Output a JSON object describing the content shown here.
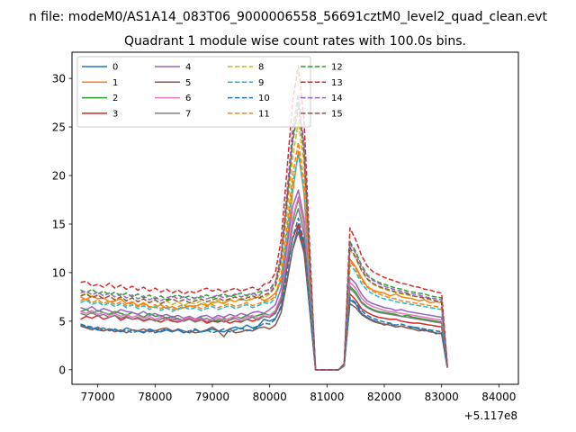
{
  "chart_data": {
    "type": "line",
    "suptitle": "n file: modeM0/AS1A14_083T06_9000006558_56691cztM0_level2_quad_clean.evt",
    "title": "Quadrant 1 module wise count rates with 100.0s bins.",
    "xlabel": "",
    "ylabel": "",
    "x_offset_label": "+5.117e8",
    "xlim": [
      76550,
      84340
    ],
    "ylim": [
      -1.5,
      32.7
    ],
    "xticks": [
      77000,
      78000,
      79000,
      80000,
      81000,
      82000,
      83000,
      84000
    ],
    "xtick_labels": [
      "77000",
      "78000",
      "79000",
      "80000",
      "81000",
      "82000",
      "83000",
      "84000"
    ],
    "yticks": [
      0,
      5,
      10,
      15,
      20,
      25,
      30
    ],
    "ytick_labels": [
      "0",
      "5",
      "10",
      "15",
      "20",
      "25",
      "30"
    ],
    "grid": false,
    "legend_position": "top-left",
    "x_start": 76700,
    "x_step": 100,
    "series": [
      {
        "name": "0",
        "color": "#1f77b4",
        "dash": "solid",
        "values": [
          4.6,
          4.4,
          4.3,
          4.1,
          4.0,
          4.2,
          4.1,
          3.9,
          4.3,
          4.1,
          4.0,
          3.8,
          4.2,
          4.0,
          3.9,
          4.1,
          3.9,
          4.2,
          4.0,
          3.8,
          4.1,
          3.9,
          4.0,
          4.2,
          4.0,
          3.9,
          4.2,
          4.4,
          4.2,
          4.6,
          4.3,
          4.5,
          5.2,
          5.0,
          5.3,
          6.4,
          9.2,
          12.5,
          14.7,
          12.4,
          6.0,
          0,
          0,
          0,
          0,
          0,
          0.4,
          7.2,
          6.8,
          5.8,
          5.4,
          5.1,
          4.9,
          4.6,
          4.8,
          4.4,
          4.5,
          4.3,
          4.4,
          4.2,
          4.0,
          4.1,
          3.7,
          3.8,
          0.2
        ]
      },
      {
        "name": "1",
        "color": "#ff7f0e",
        "dash": "solid",
        "values": [
          7.5,
          7.2,
          7.6,
          7.3,
          7.4,
          7.0,
          7.1,
          7.3,
          6.8,
          7.0,
          6.6,
          6.9,
          6.5,
          6.4,
          6.7,
          6.3,
          6.5,
          6.2,
          6.4,
          6.6,
          6.5,
          6.8,
          6.6,
          6.9,
          7.0,
          6.8,
          7.2,
          7.0,
          7.3,
          7.1,
          7.3,
          7.5,
          7.1,
          7.4,
          7.9,
          9.1,
          13.0,
          18.2,
          22.5,
          18.1,
          9.0,
          0,
          0,
          0,
          0,
          0,
          0.5,
          11.4,
          10.6,
          9.5,
          8.6,
          8.2,
          8.0,
          7.9,
          7.6,
          7.8,
          7.5,
          7.4,
          7.3,
          7.1,
          7.2,
          6.9,
          7.0,
          6.9,
          0.4
        ]
      },
      {
        "name": "2",
        "color": "#2ca02c",
        "dash": "solid",
        "values": [
          6.0,
          6.2,
          5.8,
          6.1,
          5.9,
          5.7,
          6.0,
          5.8,
          5.6,
          5.9,
          5.7,
          5.4,
          5.8,
          5.5,
          5.6,
          5.3,
          5.5,
          5.2,
          5.0,
          5.3,
          5.1,
          5.4,
          4.9,
          5.2,
          5.0,
          5.3,
          5.1,
          5.5,
          5.3,
          5.6,
          5.4,
          5.6,
          5.8,
          5.6,
          6.0,
          7.4,
          11.2,
          15.3,
          17.6,
          14.8,
          7.2,
          0,
          0,
          0,
          0,
          0,
          0.4,
          8.6,
          8.0,
          7.0,
          6.5,
          6.2,
          6.0,
          5.9,
          5.8,
          5.7,
          5.5,
          5.6,
          5.4,
          5.3,
          5.2,
          5.1,
          5.0,
          4.9,
          0.3
        ]
      },
      {
        "name": "3",
        "color": "#d62728",
        "dash": "solid",
        "values": [
          5.2,
          5.5,
          5.3,
          5.6,
          5.2,
          5.4,
          5.6,
          5.1,
          5.4,
          5.2,
          5.3,
          5.0,
          5.2,
          5.1,
          4.9,
          5.2,
          5.0,
          4.9,
          5.1,
          5.3,
          5.0,
          5.2,
          4.8,
          5.0,
          4.9,
          5.1,
          4.8,
          5.0,
          4.9,
          5.2,
          5.0,
          5.2,
          5.5,
          5.4,
          5.8,
          7.1,
          10.5,
          13.5,
          15.0,
          13.0,
          7.0,
          0,
          0,
          0,
          0,
          0,
          0.5,
          7.8,
          7.2,
          6.3,
          5.9,
          5.6,
          5.4,
          5.3,
          5.2,
          5.2,
          5.0,
          4.9,
          4.8,
          4.8,
          4.7,
          4.6,
          4.5,
          4.4,
          0.3
        ]
      },
      {
        "name": "4",
        "color": "#9467bd",
        "dash": "solid",
        "values": [
          6.4,
          6.2,
          6.5,
          6.0,
          6.3,
          6.1,
          5.8,
          6.2,
          6.0,
          5.9,
          5.7,
          6.0,
          5.6,
          5.8,
          5.5,
          5.7,
          5.4,
          5.6,
          5.3,
          5.5,
          5.2,
          5.5,
          5.6,
          5.3,
          5.6,
          5.4,
          5.7,
          5.5,
          5.8,
          5.6,
          5.9,
          6.0,
          5.8,
          6.2,
          6.7,
          8.4,
          12.6,
          16.8,
          18.5,
          15.5,
          7.8,
          0,
          0,
          0,
          0,
          0,
          0.5,
          9.5,
          8.9,
          7.8,
          7.1,
          6.8,
          6.6,
          6.4,
          6.3,
          6.1,
          6.2,
          6.0,
          5.9,
          5.8,
          5.7,
          5.6,
          5.5,
          5.4,
          0.4
        ]
      },
      {
        "name": "5",
        "color": "#8c564b",
        "dash": "solid",
        "values": [
          4.5,
          4.3,
          4.1,
          4.4,
          4.0,
          4.2,
          3.9,
          4.1,
          3.8,
          4.1,
          4.0,
          4.2,
          3.9,
          4.0,
          4.2,
          4.3,
          4.0,
          4.1,
          3.8,
          4.0,
          3.8,
          3.9,
          4.1,
          4.4,
          4.0,
          3.4,
          4.2,
          3.8,
          3.9,
          4.1,
          4.0,
          4.3,
          4.4,
          4.2,
          4.6,
          5.9,
          9.0,
          12.4,
          14.2,
          12.0,
          6.2,
          0,
          0,
          0,
          0,
          0,
          0.4,
          6.8,
          6.4,
          5.7,
          5.3,
          5.0,
          4.8,
          4.7,
          4.6,
          4.4,
          4.5,
          4.3,
          4.2,
          4.0,
          4.1,
          3.9,
          3.8,
          3.7,
          0.2
        ]
      },
      {
        "name": "6",
        "color": "#e377c2",
        "dash": "solid",
        "values": [
          6.0,
          5.8,
          6.1,
          5.7,
          5.9,
          5.6,
          5.8,
          5.5,
          5.7,
          5.4,
          5.6,
          5.3,
          5.5,
          5.2,
          5.4,
          5.1,
          5.3,
          5.0,
          5.2,
          5.4,
          5.1,
          5.3,
          5.0,
          5.2,
          5.4,
          5.1,
          5.3,
          5.5,
          5.2,
          5.4,
          5.6,
          5.3,
          5.7,
          5.6,
          6.1,
          7.6,
          11.5,
          15.6,
          17.8,
          14.9,
          7.4,
          0,
          0,
          0,
          0,
          0,
          0.5,
          9.0,
          8.4,
          7.4,
          6.8,
          6.5,
          6.3,
          6.1,
          6.0,
          5.9,
          5.8,
          5.7,
          5.6,
          5.5,
          5.4,
          5.3,
          5.2,
          5.1,
          0.3
        ]
      },
      {
        "name": "7",
        "color": "#7f7f7f",
        "dash": "solid",
        "values": [
          5.8,
          5.6,
          5.9,
          5.5,
          5.7,
          5.4,
          5.6,
          5.3,
          5.5,
          5.2,
          5.4,
          5.1,
          5.3,
          5.0,
          5.2,
          5.4,
          5.1,
          5.3,
          5.0,
          5.2,
          4.9,
          5.1,
          5.3,
          5.0,
          5.2,
          4.9,
          5.1,
          5.3,
          5.0,
          5.2,
          5.4,
          5.1,
          5.5,
          5.4,
          5.9,
          7.3,
          11.0,
          14.8,
          16.6,
          14.0,
          7.1,
          0,
          0,
          0,
          0,
          0,
          0.5,
          8.4,
          7.8,
          6.9,
          6.4,
          6.1,
          5.9,
          5.8,
          5.7,
          5.6,
          5.5,
          5.4,
          5.3,
          5.2,
          5.1,
          5.0,
          4.9,
          4.8,
          0.3
        ]
      },
      {
        "name": "8",
        "color": "#bcbd22",
        "dash": "dashed",
        "values": [
          7.6,
          7.9,
          7.4,
          7.7,
          7.3,
          7.6,
          7.2,
          7.5,
          7.1,
          7.4,
          7.0,
          7.3,
          6.9,
          7.2,
          6.8,
          7.1,
          6.7,
          7.0,
          6.6,
          6.9,
          6.8,
          7.1,
          6.7,
          7.0,
          7.2,
          6.9,
          7.3,
          7.0,
          7.4,
          7.1,
          7.5,
          7.7,
          7.4,
          7.8,
          8.5,
          10.8,
          16.0,
          21.8,
          25.6,
          21.0,
          10.4,
          0,
          0,
          0,
          0,
          0,
          0.6,
          12.4,
          11.5,
          10.2,
          9.3,
          8.8,
          8.5,
          8.3,
          8.1,
          8.0,
          7.8,
          7.7,
          7.6,
          7.5,
          7.3,
          7.2,
          7.1,
          7.0,
          0.4
        ]
      },
      {
        "name": "9",
        "color": "#17becf",
        "dash": "dashed",
        "values": [
          6.9,
          7.2,
          6.7,
          7.0,
          6.6,
          6.9,
          6.5,
          6.8,
          6.4,
          6.7,
          6.3,
          6.6,
          6.2,
          6.5,
          6.1,
          6.4,
          6.0,
          6.3,
          6.5,
          6.2,
          6.4,
          6.1,
          6.3,
          6.5,
          6.2,
          6.4,
          6.6,
          6.3,
          6.5,
          6.7,
          6.4,
          6.6,
          6.9,
          6.8,
          7.4,
          9.4,
          14.0,
          19.0,
          22.2,
          18.4,
          9.2,
          0,
          0,
          0,
          0,
          0,
          0.5,
          10.8,
          10.1,
          8.9,
          8.2,
          7.8,
          7.5,
          7.3,
          7.2,
          7.0,
          6.9,
          6.8,
          6.7,
          6.6,
          6.5,
          6.4,
          6.3,
          6.2,
          0.4
        ]
      },
      {
        "name": "10",
        "color": "#1f77b4",
        "dash": "dashed",
        "values": [
          4.7,
          4.5,
          4.4,
          4.2,
          4.3,
          4.0,
          4.2,
          3.9,
          4.1,
          3.8,
          4.0,
          3.9,
          4.1,
          3.8,
          4.0,
          4.2,
          3.9,
          4.1,
          3.8,
          4.0,
          4.2,
          3.9,
          4.1,
          3.8,
          4.0,
          4.2,
          3.9,
          4.1,
          4.3,
          4.0,
          4.2,
          4.4,
          4.8,
          4.7,
          5.2,
          6.6,
          10.0,
          13.6,
          15.6,
          13.2,
          6.6,
          0,
          0,
          0,
          0,
          0,
          0.4,
          7.4,
          6.9,
          6.1,
          5.6,
          5.3,
          5.1,
          4.9,
          4.8,
          4.6,
          4.7,
          4.5,
          4.4,
          4.3,
          4.2,
          4.1,
          4.0,
          3.9,
          0.2
        ]
      },
      {
        "name": "11",
        "color": "#ff7f0e",
        "dash": "dashed",
        "values": [
          7.1,
          7.4,
          6.9,
          7.2,
          6.8,
          7.1,
          6.7,
          7.0,
          6.6,
          6.9,
          6.5,
          6.8,
          6.4,
          6.7,
          6.3,
          6.6,
          6.2,
          6.5,
          6.7,
          6.4,
          6.6,
          6.3,
          6.5,
          6.7,
          6.4,
          6.6,
          6.8,
          6.5,
          6.7,
          6.9,
          6.6,
          6.8,
          7.0,
          7.1,
          7.6,
          9.8,
          14.6,
          20.0,
          23.4,
          19.4,
          9.6,
          0,
          0,
          0,
          0,
          0,
          0.5,
          11.2,
          10.4,
          9.2,
          8.5,
          8.1,
          7.8,
          7.6,
          7.4,
          7.3,
          7.1,
          7.0,
          6.9,
          6.8,
          6.7,
          6.6,
          6.5,
          6.4,
          0.4
        ]
      },
      {
        "name": "12",
        "color": "#2ca02c",
        "dash": "dashed",
        "values": [
          8.2,
          7.9,
          8.3,
          7.8,
          8.1,
          7.7,
          8.0,
          7.6,
          7.9,
          7.5,
          7.8,
          7.4,
          7.7,
          7.3,
          7.6,
          7.2,
          7.5,
          7.7,
          7.4,
          7.6,
          7.3,
          7.5,
          7.7,
          7.4,
          7.6,
          7.8,
          7.5,
          7.7,
          7.9,
          7.6,
          7.8,
          8.0,
          8.1,
          8.3,
          9.1,
          11.6,
          17.4,
          23.8,
          27.6,
          22.6,
          11.2,
          0,
          0,
          0,
          0,
          0,
          0.6,
          13.2,
          12.2,
          10.8,
          9.8,
          9.3,
          9.0,
          8.8,
          8.6,
          8.4,
          8.3,
          8.1,
          8.0,
          7.9,
          7.8,
          7.6,
          7.5,
          7.4,
          0.4
        ]
      },
      {
        "name": "13",
        "color": "#d62728",
        "dash": "dashed",
        "values": [
          9.0,
          9.1,
          8.6,
          8.8,
          8.5,
          8.9,
          8.4,
          8.7,
          8.3,
          8.6,
          8.2,
          8.5,
          8.1,
          8.4,
          8.0,
          8.3,
          7.9,
          8.2,
          7.8,
          8.1,
          7.9,
          8.2,
          8.4,
          8.1,
          8.3,
          8.0,
          8.2,
          8.4,
          8.1,
          8.3,
          8.5,
          8.2,
          8.8,
          9.0,
          10.0,
          13.4,
          20.4,
          27.6,
          31.3,
          25.6,
          12.4,
          0,
          0,
          0,
          0,
          0,
          0.6,
          14.6,
          13.4,
          11.8,
          10.7,
          10.1,
          9.8,
          9.5,
          9.3,
          9.1,
          8.9,
          8.8,
          8.6,
          8.5,
          8.3,
          8.2,
          8.0,
          7.9,
          0.5
        ]
      },
      {
        "name": "14",
        "color": "#9467bd",
        "dash": "dashed",
        "values": [
          7.9,
          8.1,
          7.7,
          8.0,
          7.6,
          7.9,
          7.5,
          7.8,
          7.4,
          7.7,
          7.3,
          7.6,
          7.2,
          7.5,
          7.1,
          7.4,
          7.6,
          7.3,
          7.5,
          7.2,
          7.4,
          7.6,
          7.3,
          7.5,
          7.7,
          7.4,
          7.6,
          7.8,
          7.5,
          7.7,
          7.9,
          7.6,
          8.1,
          8.2,
          9.0,
          12.0,
          18.2,
          24.8,
          28.4,
          23.2,
          11.4,
          0,
          0,
          0,
          0,
          0,
          0.6,
          13.0,
          12.0,
          10.6,
          9.7,
          9.2,
          8.9,
          8.6,
          8.4,
          8.2,
          8.1,
          7.9,
          7.8,
          7.7,
          7.5,
          7.4,
          7.3,
          7.2,
          0.4
        ]
      },
      {
        "name": "15",
        "color": "#8c564b",
        "dash": "dashed",
        "values": [
          7.6,
          7.8,
          7.4,
          7.7,
          7.3,
          7.6,
          7.2,
          7.5,
          7.1,
          7.4,
          7.0,
          7.3,
          6.9,
          7.2,
          6.8,
          7.1,
          7.3,
          7.0,
          7.2,
          6.9,
          7.1,
          7.3,
          7.0,
          7.2,
          7.4,
          7.1,
          7.3,
          7.5,
          7.2,
          7.4,
          7.6,
          7.3,
          7.7,
          7.9,
          8.7,
          11.4,
          17.2,
          23.4,
          27.0,
          22.2,
          11.0,
          0,
          0,
          0,
          0,
          0,
          0.6,
          12.6,
          11.6,
          10.3,
          9.4,
          8.9,
          8.6,
          8.4,
          8.2,
          8.0,
          7.9,
          7.8,
          7.6,
          7.5,
          7.4,
          7.3,
          7.1,
          7.0,
          0.4
        ]
      }
    ]
  }
}
